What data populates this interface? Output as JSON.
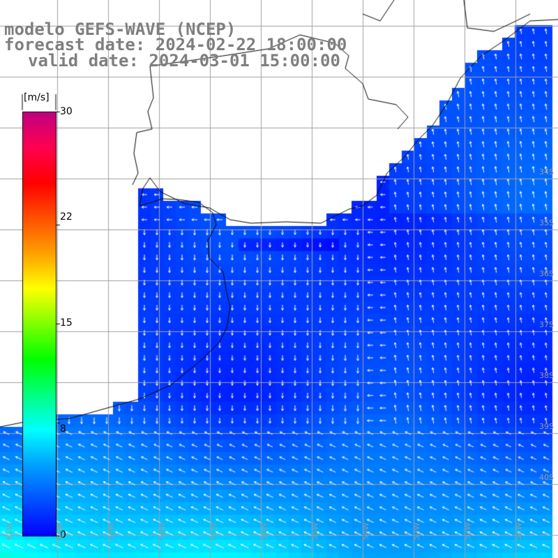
{
  "title": {
    "model": "modelo GEFS-WAVE (NCEP)",
    "forecast": "forecast date: 2024-02-22 18:00:00",
    "valid": "valid date: 2024-03-01 15:00:00"
  },
  "colorbar": {
    "unit": "[m/s]",
    "ticks": [
      "30",
      "22",
      "15",
      "8",
      "0"
    ],
    "tick_values": [
      30,
      22,
      15,
      8,
      0
    ],
    "range": [
      0,
      30
    ],
    "colors": [
      "#0000ff",
      "#0050ff",
      "#00a0ff",
      "#00ffff",
      "#00ff80",
      "#00ff00",
      "#80ff00",
      "#ffff00",
      "#ffa000",
      "#ff5000",
      "#ff0000",
      "#ff0050",
      "#c00080"
    ]
  },
  "map": {
    "lat_labels": [
      "34S",
      "35S",
      "36S",
      "37S",
      "38S",
      "39S",
      "40S"
    ],
    "lon_labels": [
      "61W",
      "60W",
      "59W",
      "58W",
      "57W",
      "56W",
      "55W",
      "54W",
      "53W",
      "52W",
      "51W"
    ],
    "land_color": "#ffffff",
    "grid_color": "#a0a0a0",
    "coast_color": "#000000",
    "arrow_color": "#ffffff",
    "wind_speed_range": [
      0,
      8
    ]
  }
}
